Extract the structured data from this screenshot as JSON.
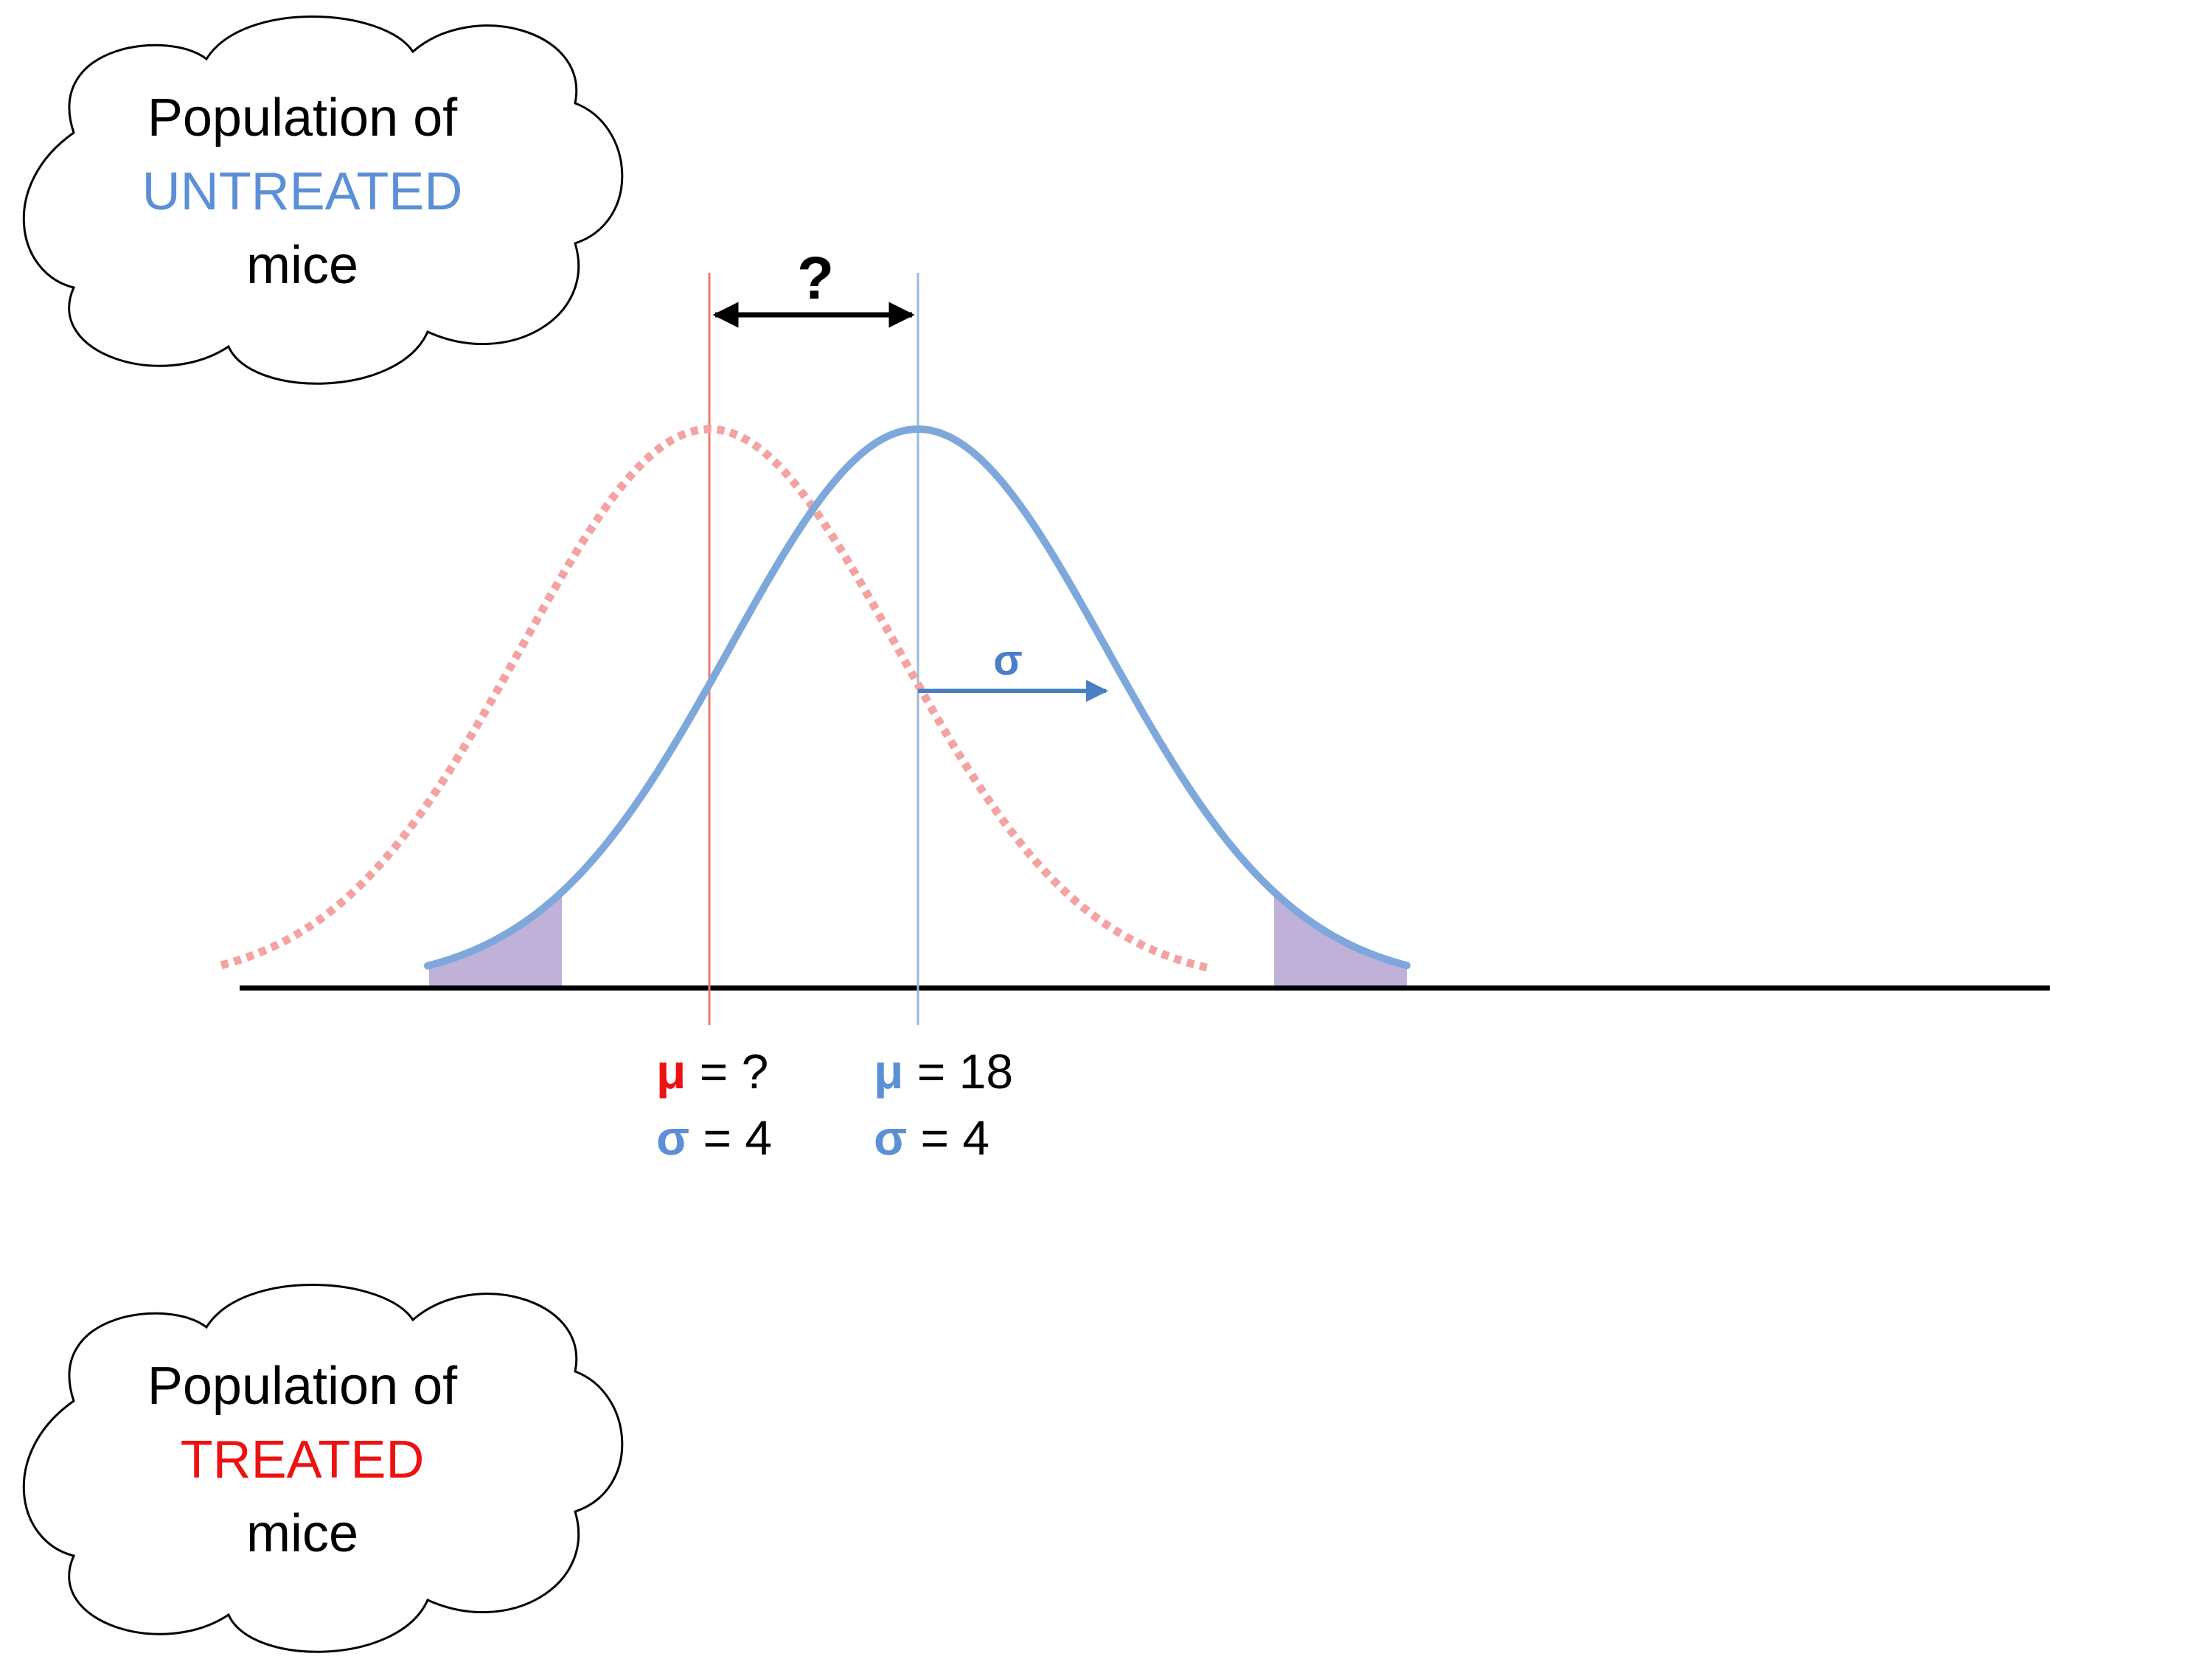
{
  "colors": {
    "untreated": "#5b8fd6",
    "treated": "#ee1111",
    "red_curve": "#f4a2a2",
    "blue_curve": "#7ea7dc",
    "tail_fill": "#b8a8d4",
    "axis": "#000000"
  },
  "untreated_cloud": {
    "line1": "Population of",
    "line2": "UNTREATED",
    "line3": "mice"
  },
  "treated_cloud": {
    "line1": "Population of",
    "line2": "TREATED",
    "line3": "mice"
  },
  "diff_label": "?",
  "sigma_arrow_label": "σ",
  "treated_params": {
    "mu_symbol": "μ",
    "mu_value": " = ?",
    "sigma_symbol": "σ",
    "sigma_value": " = 4"
  },
  "untreated_params": {
    "mu_symbol": "μ",
    "mu_value": " = 18",
    "sigma_symbol": "σ",
    "sigma_value": " = 4"
  },
  "chart_data": {
    "type": "line",
    "title": "",
    "xlabel": "",
    "ylabel": "",
    "series": [
      {
        "name": "untreated",
        "mean": 18,
        "sd": 4,
        "style": "solid"
      },
      {
        "name": "treated",
        "mean": "?",
        "sd": 4,
        "style": "dotted"
      }
    ]
  }
}
